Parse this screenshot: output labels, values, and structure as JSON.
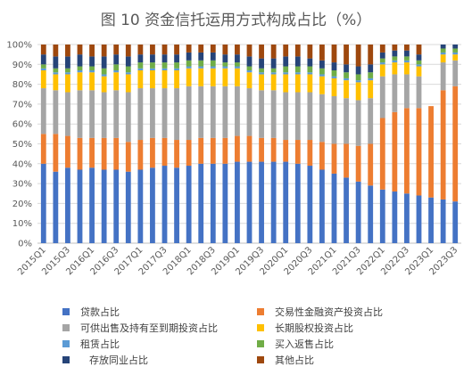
{
  "title": "图 10 资金信托运用方式构成占比（%）",
  "chart_data": {
    "type": "bar",
    "stacked": true,
    "ylim": [
      0,
      100
    ],
    "yticks": [
      "0%",
      "10%",
      "20%",
      "30%",
      "40%",
      "50%",
      "60%",
      "70%",
      "80%",
      "90%",
      "100%"
    ],
    "grid": true,
    "legend_position": "bottom",
    "categories": [
      "2015Q1",
      "2015Q2",
      "2015Q3",
      "2015Q4",
      "2016Q1",
      "2016Q2",
      "2016Q3",
      "2016Q4",
      "2017Q1",
      "2017Q2",
      "2017Q3",
      "2017Q4",
      "2018Q1",
      "2018Q2",
      "2018Q3",
      "2018Q4",
      "2019Q1",
      "2019Q2",
      "2019Q3",
      "2019Q4",
      "2020Q1",
      "2020Q2",
      "2020Q3",
      "2020Q4",
      "2021Q1",
      "2021Q2",
      "2021Q3",
      "2021Q4",
      "2022Q1",
      "2022Q2",
      "2022Q3",
      "2022Q4",
      "2023Q1",
      "2023Q2",
      "2023Q3"
    ],
    "xtick_labels": [
      "2015Q1",
      "",
      "2015Q3",
      "",
      "2016Q1",
      "",
      "2016Q3",
      "",
      "2017Q1",
      "",
      "2017Q3",
      "",
      "2018Q1",
      "",
      "2018Q3",
      "",
      "2019Q1",
      "",
      "2019Q3",
      "",
      "2020Q1",
      "",
      "2020Q3",
      "",
      "2021Q1",
      "",
      "2021Q3",
      "",
      "2022Q1",
      "",
      "2022Q3",
      "",
      "2023Q1",
      "",
      "2023Q3"
    ],
    "series": [
      {
        "name": "贷款占比",
        "color": "#4472C4",
        "values": [
          40,
          36,
          38,
          37,
          38,
          37,
          37,
          36,
          37,
          38,
          39,
          38,
          39,
          40,
          40,
          40,
          41,
          41,
          41,
          41,
          41,
          40,
          39,
          37,
          35,
          33,
          31,
          29,
          27,
          26,
          25,
          24,
          23,
          22,
          21
        ]
      },
      {
        "name": "交易性金融资产投资占比",
        "color": "#ED7D31",
        "values": [
          15,
          19,
          16,
          16,
          15,
          16,
          16,
          15,
          15,
          15,
          14,
          14,
          13,
          13,
          13,
          13,
          13,
          13,
          12,
          12,
          11,
          12,
          13,
          14,
          15,
          17,
          18,
          21,
          36,
          40,
          43,
          44,
          46,
          55,
          58
        ]
      },
      {
        "name": "可供出售及持有至到期投资占比",
        "color": "#A5A5A5",
        "values": [
          23,
          22,
          22,
          24,
          24,
          23,
          24,
          25,
          26,
          25,
          25,
          26,
          27,
          26,
          26,
          26,
          25,
          24,
          24,
          24,
          24,
          24,
          24,
          24,
          24,
          23,
          23,
          23,
          21,
          19,
          17,
          16,
          0,
          14,
          13
        ]
      },
      {
        "name": "长期股权投资占比",
        "color": "#FFC000",
        "values": [
          9,
          8,
          9,
          9,
          9,
          8,
          9,
          9,
          9,
          9,
          9,
          9,
          9,
          9,
          9,
          9,
          9,
          8,
          8,
          8,
          9,
          9,
          9,
          9,
          9,
          9,
          9,
          9,
          6,
          6,
          6,
          5,
          0,
          4,
          3
        ]
      },
      {
        "name": "租赁占比",
        "color": "#5B9BD5",
        "values": [
          1,
          1,
          1,
          1,
          1,
          1,
          1,
          1,
          1,
          1,
          1,
          1,
          1,
          1,
          1,
          1,
          1,
          1,
          1,
          1,
          1,
          1,
          1,
          1,
          1,
          1,
          1,
          1,
          1,
          1,
          1,
          1,
          0,
          1,
          1
        ]
      },
      {
        "name": "买入返售占比",
        "color": "#70AD47",
        "values": [
          2,
          2,
          2,
          2,
          2,
          3,
          3,
          3,
          3,
          3,
          3,
          3,
          3,
          3,
          3,
          2,
          2,
          2,
          2,
          2,
          3,
          3,
          3,
          3,
          3,
          3,
          3,
          3,
          2,
          2,
          2,
          2,
          0,
          2,
          2
        ]
      },
      {
        "name": "存放同业占比",
        "color": "#264478",
        "values": [
          5,
          6,
          6,
          6,
          5,
          6,
          5,
          5,
          4,
          4,
          4,
          4,
          4,
          4,
          4,
          4,
          4,
          5,
          5,
          5,
          5,
          5,
          4,
          4,
          4,
          4,
          4,
          4,
          3,
          3,
          3,
          3,
          0,
          2,
          2
        ]
      },
      {
        "name": "其他占比",
        "color": "#9E480E",
        "values": [
          5,
          6,
          6,
          5,
          6,
          6,
          5,
          6,
          5,
          5,
          5,
          5,
          4,
          4,
          4,
          5,
          5,
          6,
          7,
          7,
          6,
          6,
          7,
          8,
          9,
          10,
          11,
          10,
          4,
          3,
          3,
          5,
          0,
          0,
          0
        ]
      }
    ]
  }
}
